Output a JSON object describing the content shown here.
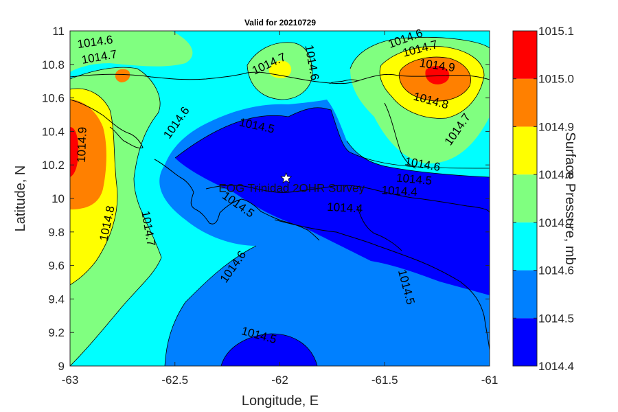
{
  "chart_data": {
    "type": "heatmap",
    "title": "Valid for 20210729",
    "xlabel": "Longitude, E",
    "ylabel": "Latitude, N",
    "xlim": [
      -63,
      -61
    ],
    "ylim": [
      9,
      11
    ],
    "x_ticks": [
      "-63",
      "-62.5",
      "-62",
      "-61.5",
      "-61"
    ],
    "x_tick_values": [
      -63,
      -62.5,
      -62,
      -61.5,
      -61
    ],
    "y_ticks": [
      "9",
      "9.2",
      "9.4",
      "9.6",
      "9.8",
      "10",
      "10.2",
      "10.4",
      "10.6",
      "10.8",
      "11"
    ],
    "y_tick_values": [
      9,
      9.2,
      9.4,
      9.6,
      9.8,
      10,
      10.2,
      10.4,
      10.6,
      10.8,
      11
    ],
    "colorbar": {
      "label": "Surface Pressure, mb",
      "levels": [
        1014.4,
        1014.5,
        1014.6,
        1014.7,
        1014.8,
        1014.9,
        1015.0,
        1015.1
      ],
      "tick_labels": [
        "1014.4",
        "1014.5",
        "1014.6",
        "1014.7",
        "1014.8",
        "1014.9",
        "1015.0",
        "1015.1"
      ],
      "colors": [
        "#0000ff",
        "#0080ff",
        "#00ffff",
        "#80ff80",
        "#ffff00",
        "#ff8000",
        "#ff0000"
      ]
    },
    "contour_labels": [
      {
        "text": "1014.6",
        "lon": -62.88,
        "lat": 10.93
      },
      {
        "text": "1014.7",
        "lon": -62.86,
        "lat": 10.84
      },
      {
        "text": "1014.9",
        "lon": -62.94,
        "lat": 10.32
      },
      {
        "text": "1014.8",
        "lon": -62.82,
        "lat": 9.85
      },
      {
        "text": "1014.7",
        "lon": -62.63,
        "lat": 9.82
      },
      {
        "text": "1014.6",
        "lon": -62.49,
        "lat": 10.45
      },
      {
        "text": "1014.7",
        "lon": -62.05,
        "lat": 10.8
      },
      {
        "text": "1014.6",
        "lon": -61.85,
        "lat": 10.81
      },
      {
        "text": "1014.5",
        "lon": -62.11,
        "lat": 10.43
      },
      {
        "text": "1014.5",
        "lon": -62.2,
        "lat": 9.96
      },
      {
        "text": "1014.6",
        "lon": -62.22,
        "lat": 9.59
      },
      {
        "text": "1014.5",
        "lon": -62.1,
        "lat": 9.18
      },
      {
        "text": "1014.4",
        "lon": -61.69,
        "lat": 9.94
      },
      {
        "text": "1014.4",
        "lon": -61.43,
        "lat": 10.04
      },
      {
        "text": "1014.5",
        "lon": -61.36,
        "lat": 10.11
      },
      {
        "text": "1014.6",
        "lon": -61.32,
        "lat": 10.2
      },
      {
        "text": "1014.5",
        "lon": -61.4,
        "lat": 9.47
      },
      {
        "text": "1014.6",
        "lon": -61.4,
        "lat": 10.95
      },
      {
        "text": "1014.7",
        "lon": -61.33,
        "lat": 10.89
      },
      {
        "text": "1014.9",
        "lon": -61.25,
        "lat": 10.79
      },
      {
        "text": "1014.8",
        "lon": -61.28,
        "lat": 10.58
      },
      {
        "text": "1014.7",
        "lon": -61.15,
        "lat": 10.41
      }
    ],
    "marker": {
      "lon": -61.97,
      "lat": 10.12,
      "label": "EOG Trinidad 2OHR Survey"
    }
  }
}
